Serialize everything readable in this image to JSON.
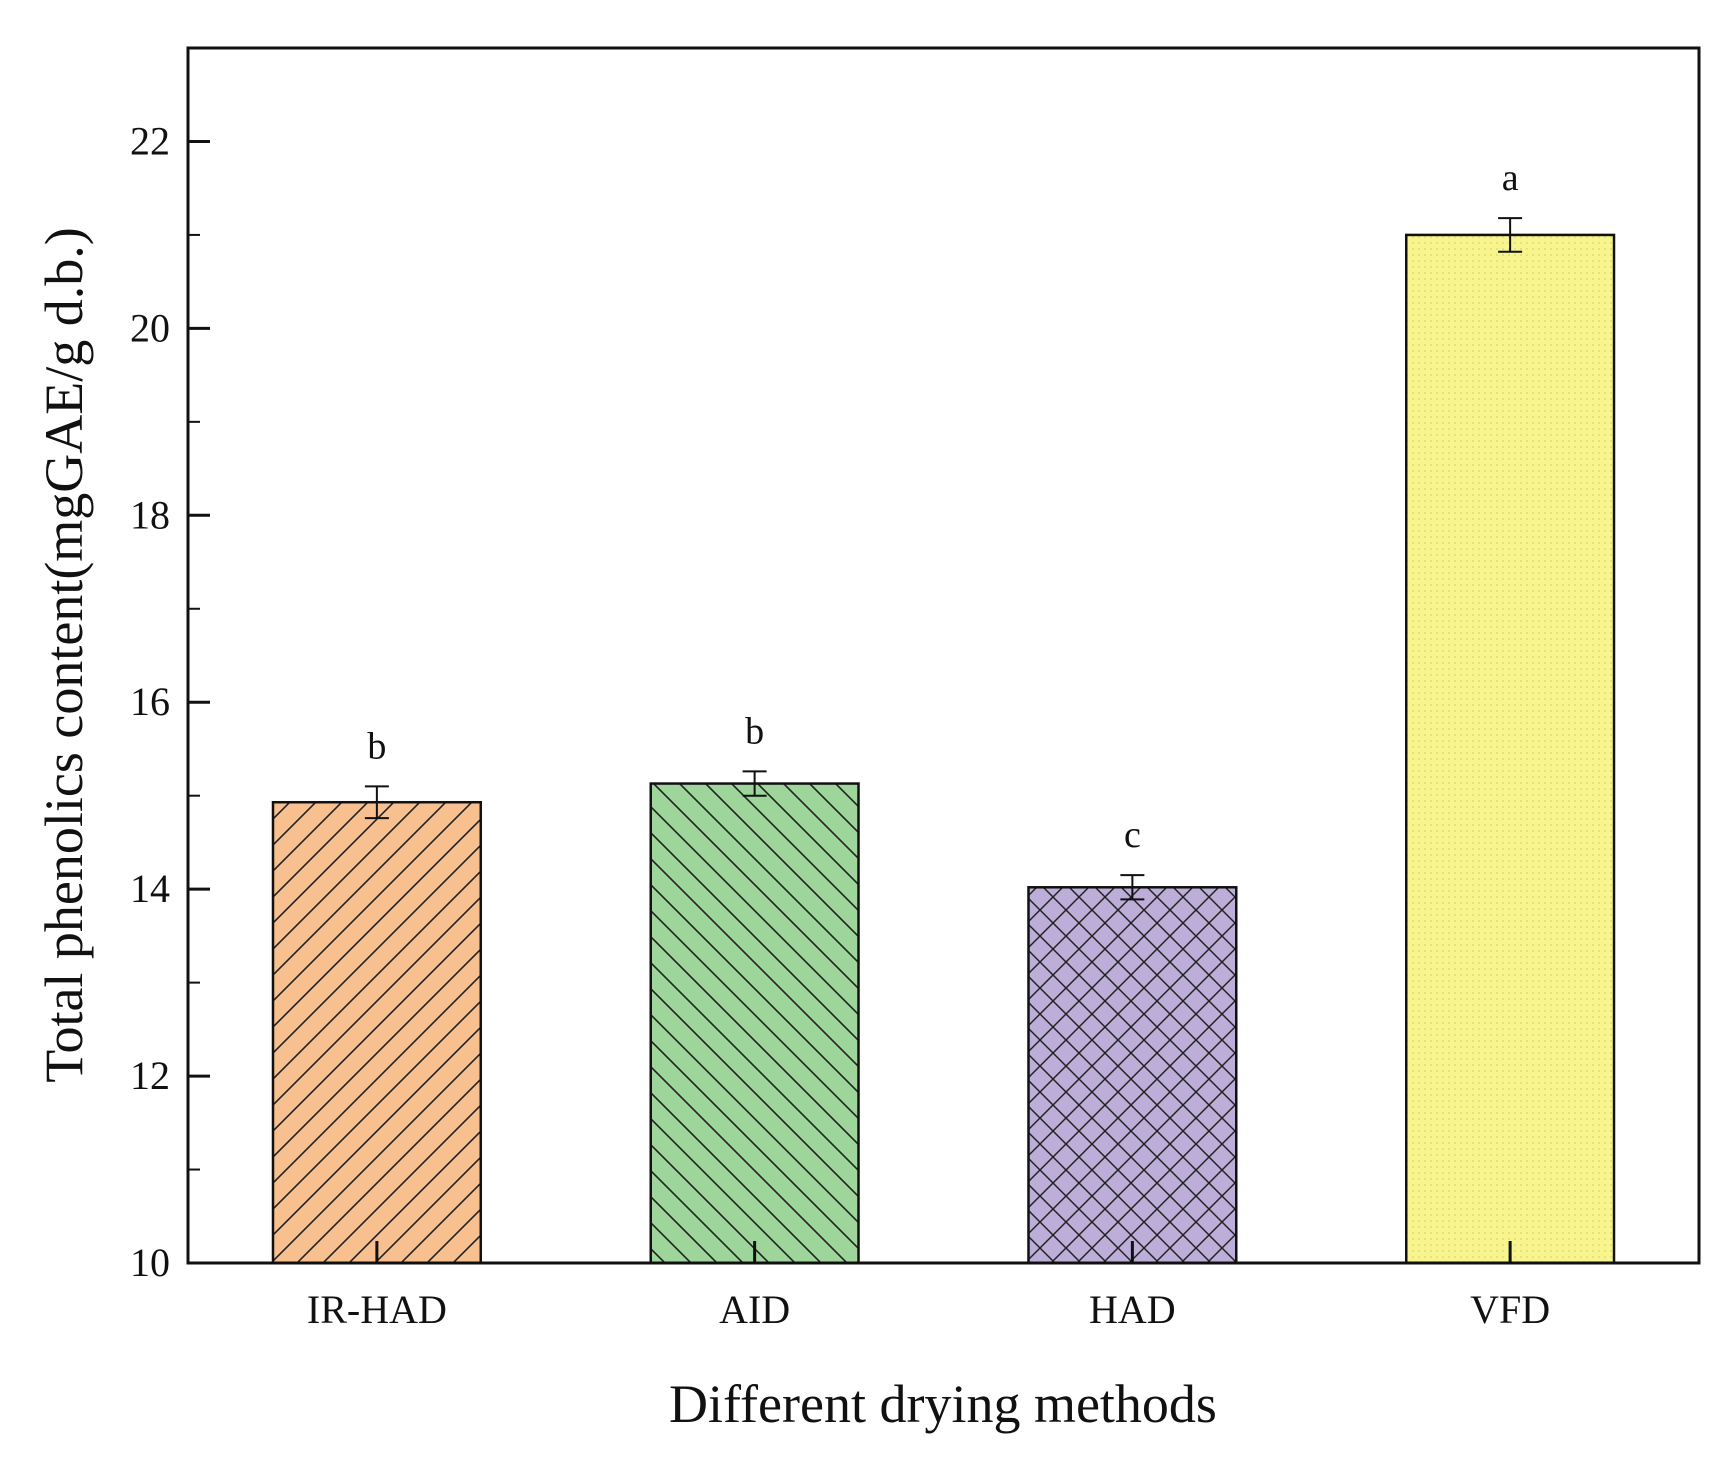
{
  "chart_data": {
    "type": "bar",
    "title": "",
    "xlabel": "Different drying methods",
    "ylabel": "Total phenolics content(mgGAE/g d.b.)",
    "ylim": [
      10,
      23
    ],
    "yticks": [
      10,
      12,
      14,
      16,
      18,
      20,
      22
    ],
    "ytick_labels": [
      "10",
      "12",
      "14",
      "16",
      "18",
      "20",
      "22"
    ],
    "categories": [
      "IR-HAD",
      "AID",
      "HAD",
      "VFD"
    ],
    "values": [
      14.93,
      15.13,
      14.02,
      21.0
    ],
    "errors": [
      0.17,
      0.13,
      0.13,
      0.18
    ],
    "significance": [
      "b",
      "b",
      "c",
      "a"
    ],
    "colors": [
      "#f9c08f",
      "#9ed59b",
      "#bcaed8",
      "#f8f58e"
    ],
    "patterns": [
      "diagonal-forward",
      "diagonal-backward",
      "crosshatch",
      "fine-dots"
    ],
    "grid": false,
    "legend": "none"
  }
}
